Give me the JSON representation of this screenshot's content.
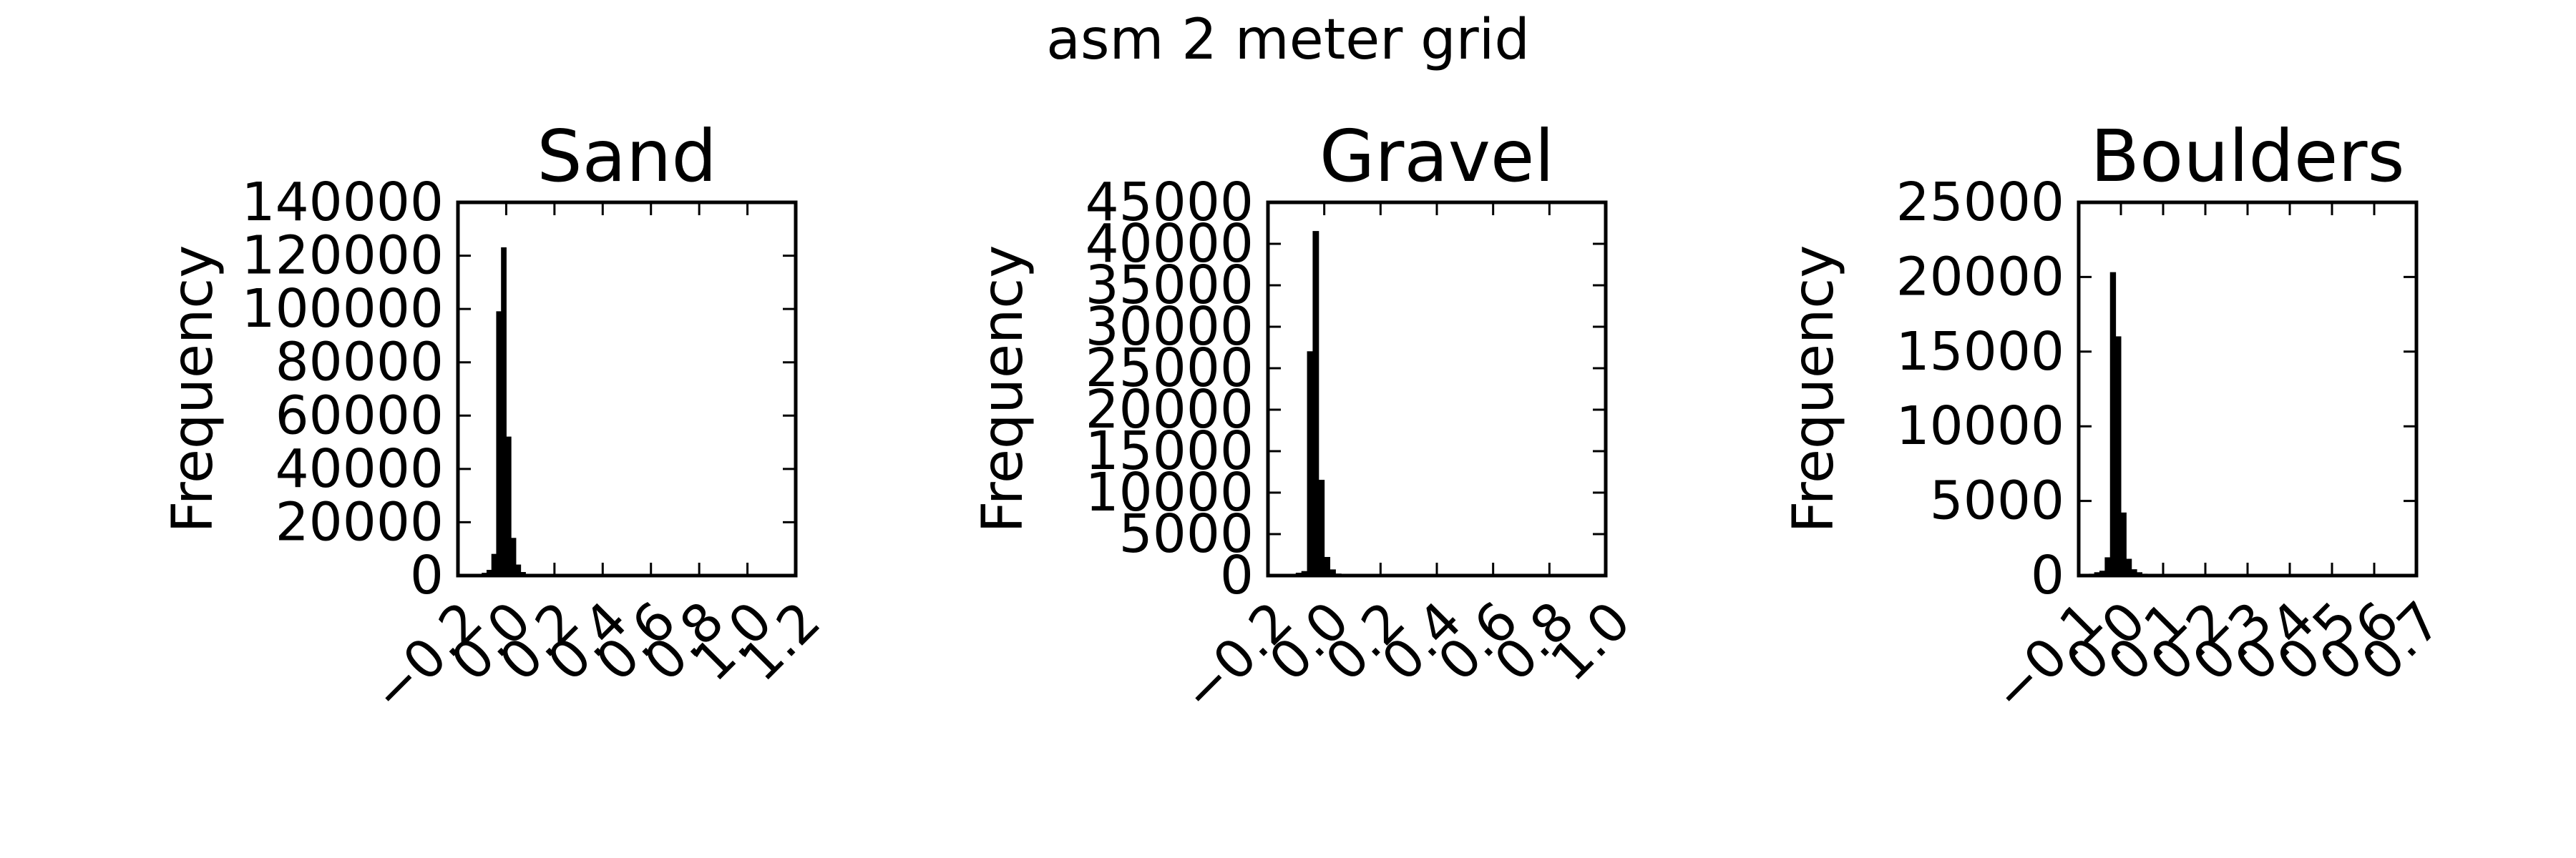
{
  "figure": {
    "suptitle": "asm 2 meter grid"
  },
  "colors": {
    "bar": "#000000",
    "axes": "#000000",
    "background": "#ffffff"
  },
  "chart_data": [
    {
      "type": "bar",
      "title": "Sand",
      "xlabel": "",
      "ylabel": "Frequency",
      "grid": false,
      "xlim": [
        -0.2,
        1.2
      ],
      "ylim": [
        0,
        140000
      ],
      "x_ticks": [
        -0.2,
        0.0,
        0.2,
        0.4,
        0.6,
        0.8,
        1.0,
        1.2
      ],
      "x_tick_labels": [
        "−0.2",
        "0.0",
        "0.2",
        "0.4",
        "0.6",
        "0.8",
        "1.0",
        "1.2"
      ],
      "y_ticks": [
        0,
        20000,
        40000,
        60000,
        80000,
        100000,
        120000,
        140000
      ],
      "y_tick_labels": [
        "0",
        "20000",
        "40000",
        "60000",
        "80000",
        "100000",
        "120000",
        "140000"
      ],
      "bin_width": 0.02,
      "bins": [
        {
          "x": -0.12,
          "y": 300
        },
        {
          "x": -0.1,
          "y": 900
        },
        {
          "x": -0.08,
          "y": 2000
        },
        {
          "x": -0.06,
          "y": 8000
        },
        {
          "x": -0.04,
          "y": 99000
        },
        {
          "x": -0.02,
          "y": 123000
        },
        {
          "x": 0.0,
          "y": 52000
        },
        {
          "x": 0.02,
          "y": 14000
        },
        {
          "x": 0.04,
          "y": 4000
        },
        {
          "x": 0.06,
          "y": 1200
        },
        {
          "x": 0.08,
          "y": 400
        },
        {
          "x": 0.1,
          "y": 150
        }
      ]
    },
    {
      "type": "bar",
      "title": "Gravel",
      "xlabel": "",
      "ylabel": "Frequency",
      "grid": false,
      "xlim": [
        -0.2,
        1.0
      ],
      "ylim": [
        0,
        45000
      ],
      "x_ticks": [
        -0.2,
        0.0,
        0.2,
        0.4,
        0.6,
        0.8,
        1.0
      ],
      "x_tick_labels": [
        "−0.2",
        "0.0",
        "0.2",
        "0.4",
        "0.6",
        "0.8",
        "1.0"
      ],
      "y_ticks": [
        0,
        5000,
        10000,
        15000,
        20000,
        25000,
        30000,
        35000,
        40000,
        45000
      ],
      "y_tick_labels": [
        "0",
        "5000",
        "10000",
        "15000",
        "20000",
        "25000",
        "30000",
        "35000",
        "40000",
        "45000"
      ],
      "bin_width": 0.02,
      "bins": [
        {
          "x": -0.12,
          "y": 150
        },
        {
          "x": -0.1,
          "y": 300
        },
        {
          "x": -0.08,
          "y": 500
        },
        {
          "x": -0.06,
          "y": 27000
        },
        {
          "x": -0.04,
          "y": 41500
        },
        {
          "x": -0.02,
          "y": 11500
        },
        {
          "x": 0.0,
          "y": 2200
        },
        {
          "x": 0.02,
          "y": 700
        },
        {
          "x": 0.04,
          "y": 200
        }
      ]
    },
    {
      "type": "bar",
      "title": "Boulders",
      "xlabel": "",
      "ylabel": "Frequency",
      "grid": false,
      "xlim": [
        -0.1,
        0.7
      ],
      "ylim": [
        0,
        25000
      ],
      "x_ticks": [
        -0.1,
        0.0,
        0.1,
        0.2,
        0.3,
        0.4,
        0.5,
        0.6,
        0.7
      ],
      "x_tick_labels": [
        "−0.1",
        "0.0",
        "0.1",
        "0.2",
        "0.3",
        "0.4",
        "0.5",
        "0.6",
        "0.7"
      ],
      "y_ticks": [
        0,
        5000,
        10000,
        15000,
        20000,
        25000
      ],
      "y_tick_labels": [
        "0",
        "5000",
        "10000",
        "15000",
        "20000",
        "25000"
      ],
      "bin_width": 0.0125,
      "bins": [
        {
          "x": -0.075,
          "y": 100
        },
        {
          "x": -0.0625,
          "y": 200
        },
        {
          "x": -0.05,
          "y": 300
        },
        {
          "x": -0.0375,
          "y": 1200
        },
        {
          "x": -0.025,
          "y": 20300
        },
        {
          "x": -0.0125,
          "y": 16000
        },
        {
          "x": 0.0,
          "y": 4200
        },
        {
          "x": 0.0125,
          "y": 1100
        },
        {
          "x": 0.025,
          "y": 400
        },
        {
          "x": 0.0375,
          "y": 200
        },
        {
          "x": 0.05,
          "y": 100
        }
      ]
    }
  ]
}
